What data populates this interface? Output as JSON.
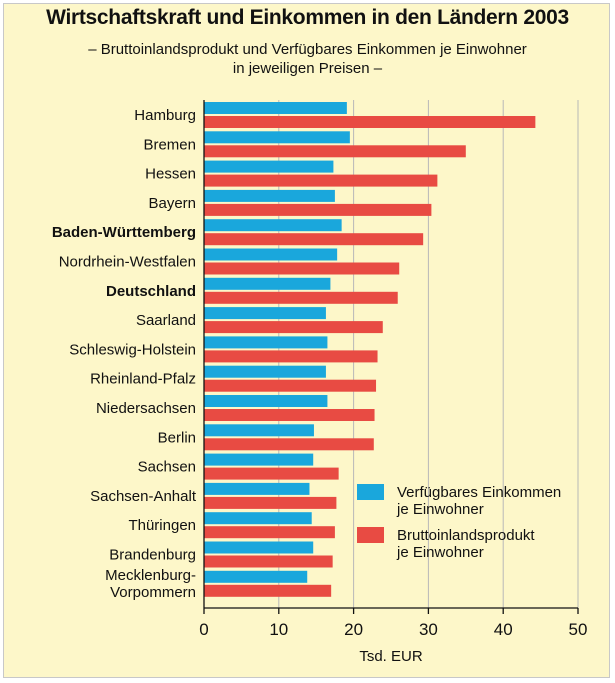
{
  "title": "Wirtschaftskraft und Einkommen in den Ländern 2003",
  "subtitle_line1": "– Bruttoinlandsprodukt und Verfügbares Einkommen je Einwohner",
  "subtitle_line2": "in jeweiligen Preisen –",
  "colors": {
    "background": "#fdf7c9",
    "series_income": "#1aa7dc",
    "series_gdp": "#e84b43"
  },
  "chart_data": {
    "type": "bar",
    "orientation": "horizontal",
    "title": "Wirtschaftskraft und Einkommen in den Ländern 2003",
    "xlabel": "Tsd. EUR",
    "ylabel": "",
    "xlim": [
      0,
      50
    ],
    "xticks": [
      0,
      10,
      20,
      30,
      40,
      50
    ],
    "grid": true,
    "legend_position": "bottom-right",
    "categories": [
      "Hamburg",
      "Bremen",
      "Hessen",
      "Bayern",
      "Baden-Württemberg",
      "Nordrhein-Westfalen",
      "Deutschland",
      "Saarland",
      "Schleswig-Holstein",
      "Rheinland-Pfalz",
      "Niedersachsen",
      "Berlin",
      "Sachsen",
      "Sachsen-Anhalt",
      "Thüringen",
      "Brandenburg",
      "Mecklenburg-Vorpommern"
    ],
    "bold_categories": [
      "Baden-Württemberg",
      "Deutschland"
    ],
    "series": [
      {
        "name": "Verfügbares Einkommen je Einwohner",
        "legend_lines": [
          "Verfügbares Einkommen",
          "je Einwohner"
        ],
        "values": [
          19.1,
          19.5,
          17.3,
          17.5,
          18.4,
          17.8,
          16.9,
          16.3,
          16.5,
          16.3,
          16.5,
          14.7,
          14.6,
          14.1,
          14.4,
          14.6,
          13.8
        ]
      },
      {
        "name": "Bruttoinlandsprodukt je Einwohner",
        "legend_lines": [
          "Bruttoinlandsprodukt",
          "je Einwohner"
        ],
        "values": [
          44.3,
          35.0,
          31.2,
          30.4,
          29.3,
          26.1,
          25.9,
          23.9,
          23.2,
          23.0,
          22.8,
          22.7,
          18.0,
          17.7,
          17.5,
          17.2,
          17.0
        ]
      }
    ]
  }
}
